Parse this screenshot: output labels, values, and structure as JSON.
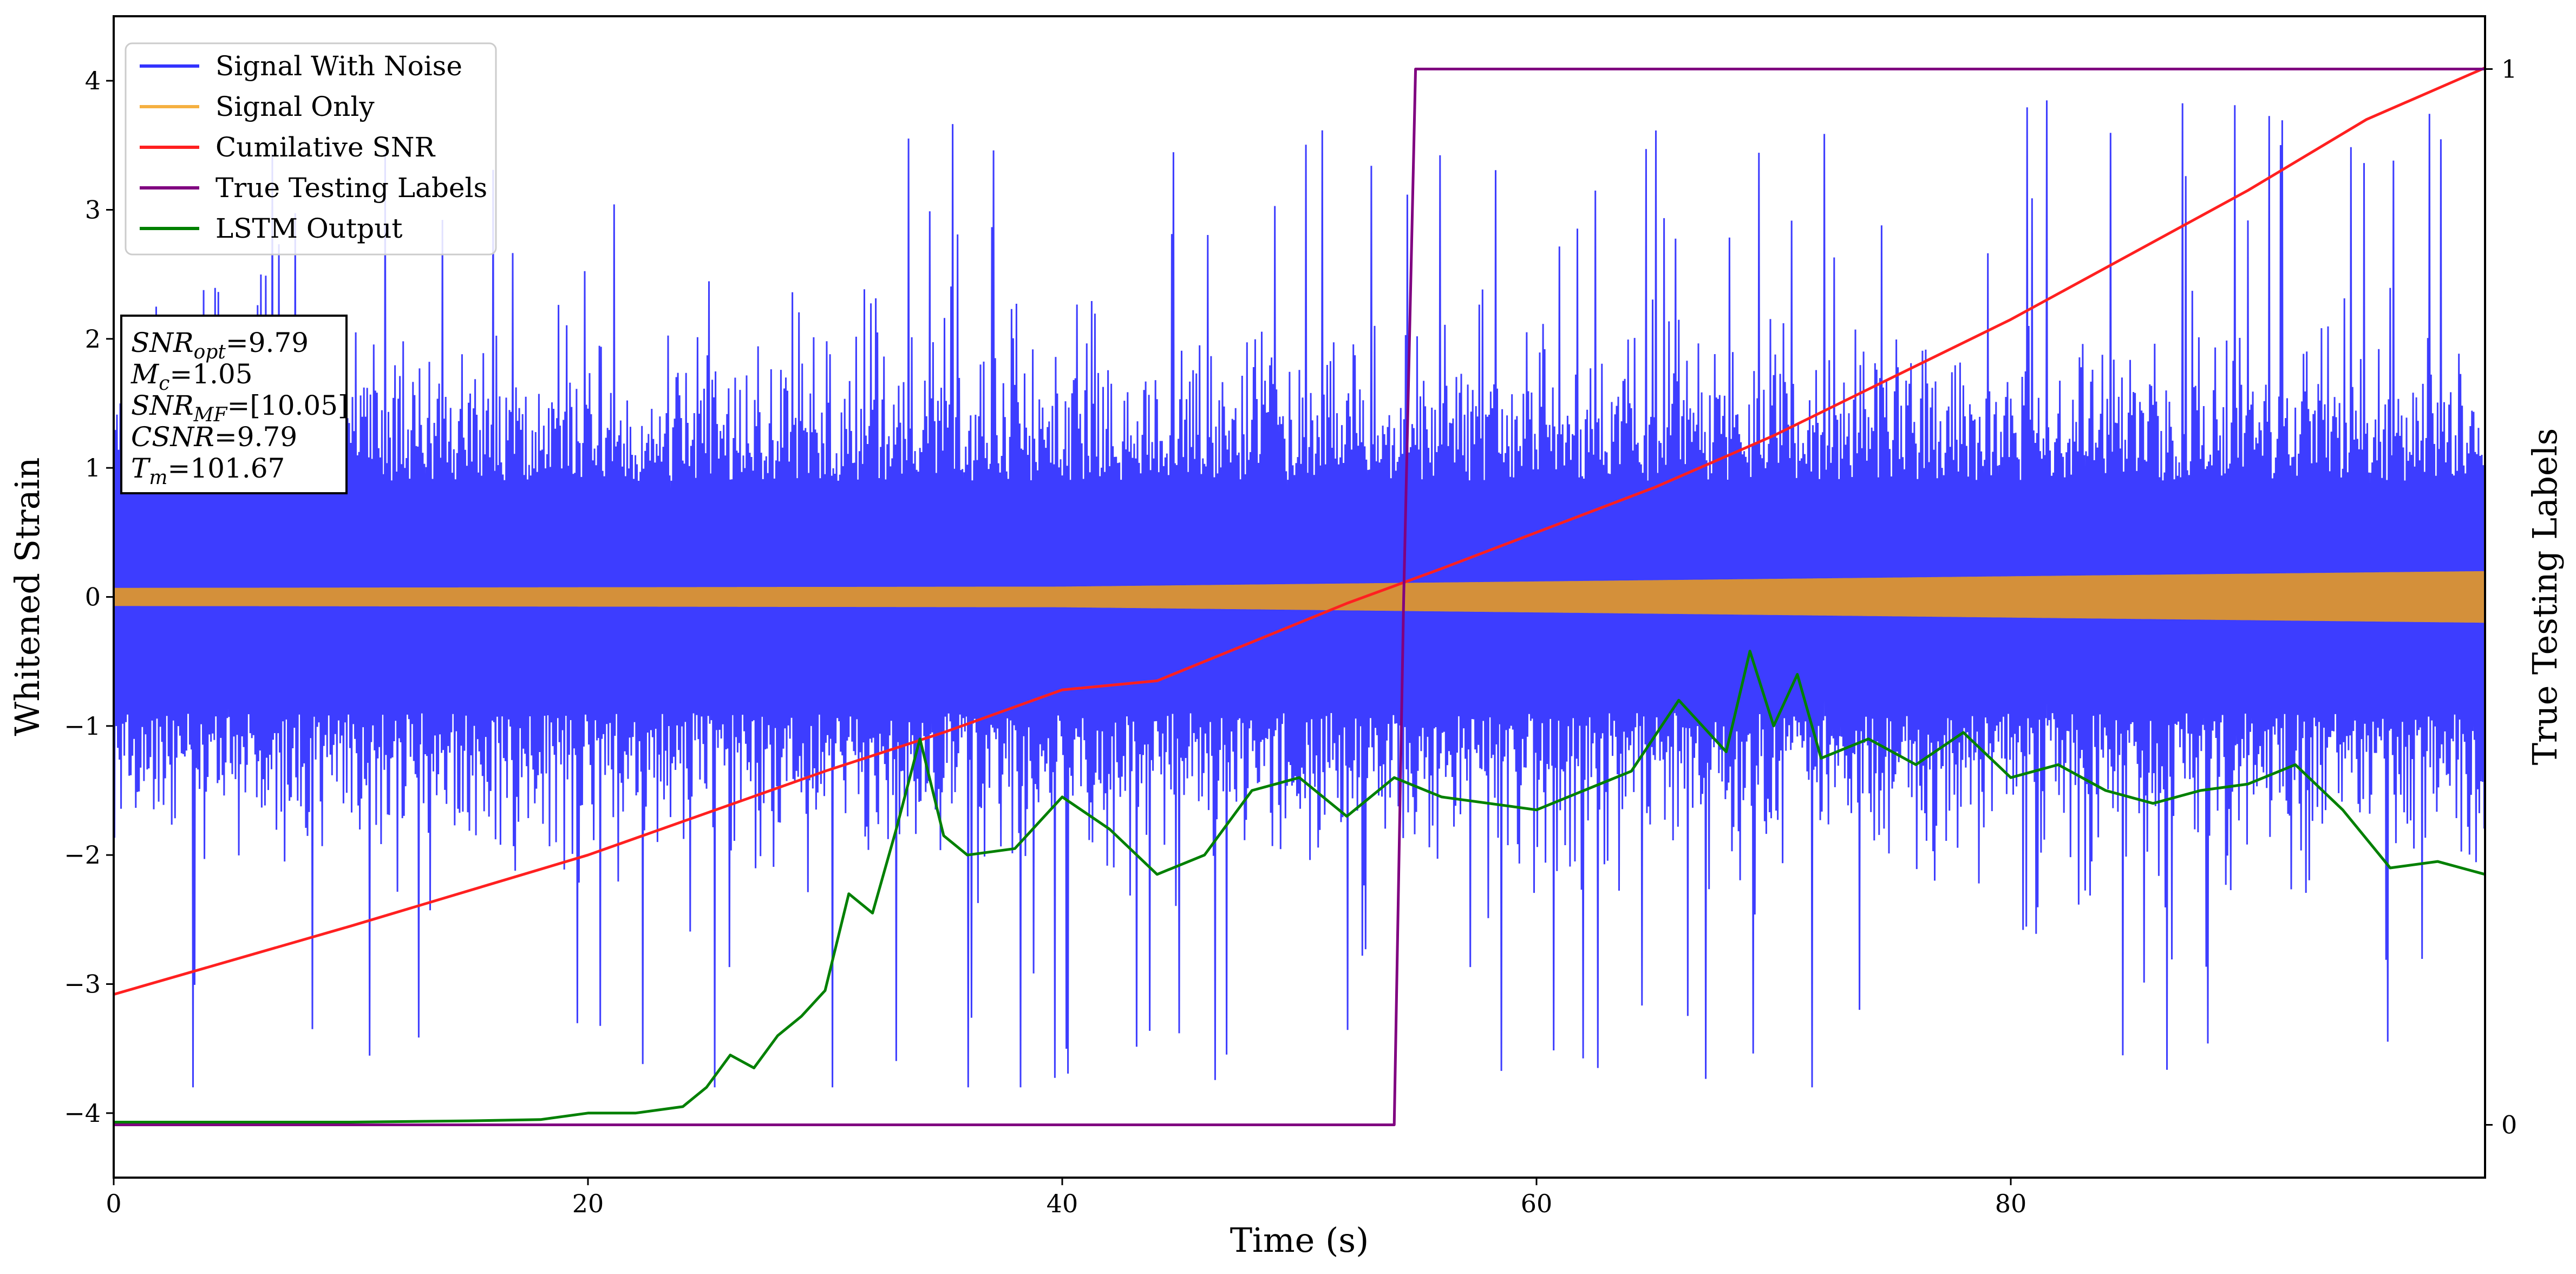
{
  "chart_data": {
    "type": "line",
    "title": "",
    "xlabel": "Time (s)",
    "ylabel": "Whitened Strain",
    "y2label": "True Testing Labels",
    "xlim": [
      0,
      100
    ],
    "ylim": [
      -4.5,
      4.5
    ],
    "y2lim": [
      -0.05,
      1.05
    ],
    "x_ticks": [
      0,
      20,
      40,
      60,
      80
    ],
    "y_ticks": [
      -4,
      -3,
      -2,
      -1,
      0,
      1,
      2,
      3,
      4
    ],
    "y2_ticks": [
      0,
      1
    ],
    "legend": {
      "position": "upper-left",
      "entries": [
        {
          "label": "Signal With Noise",
          "color": "#3333ff"
        },
        {
          "label": "Signal Only",
          "color": "#f5b041"
        },
        {
          "label": "Cumilative SNR",
          "color": "#ff2020"
        },
        {
          "label": "True Testing Labels",
          "color": "#800080"
        },
        {
          "label": "LSTM Output",
          "color": "#008000"
        }
      ]
    },
    "info_box": {
      "position": "left",
      "lines": [
        {
          "base": "SNR",
          "sub": "opt",
          "value": "=9.79"
        },
        {
          "base": "M",
          "sub": "c",
          "value": "=1.05"
        },
        {
          "base": "SNR",
          "sub": "MF",
          "value": "=[10.05]"
        },
        {
          "base": "CSNR",
          "sub": "",
          "value": "=9.79"
        },
        {
          "base": "T",
          "sub": "m",
          "value": "=101.67"
        }
      ]
    },
    "noise_band": {
      "low_typical": -1.5,
      "high_typical": 1.6,
      "peak_max": 4.1,
      "peak_min": -3.8
    },
    "signal_only": {
      "description_amplitude": [
        {
          "x": 0,
          "amp": 0.07
        },
        {
          "x": 40,
          "amp": 0.08
        },
        {
          "x": 60,
          "amp": 0.12
        },
        {
          "x": 80,
          "amp": 0.16
        },
        {
          "x": 100,
          "amp": 0.2
        }
      ]
    },
    "series": [
      {
        "name": "Cumilative SNR",
        "color": "#ff2020",
        "axis": "left",
        "x": [
          0,
          10,
          20,
          30,
          35,
          40,
          44,
          48,
          52,
          56,
          60,
          65,
          70,
          75,
          80,
          85,
          90,
          95,
          100
        ],
        "y": [
          -3.08,
          -2.55,
          -2.0,
          -1.35,
          -1.05,
          -0.72,
          -0.65,
          -0.35,
          -0.05,
          0.22,
          0.5,
          0.85,
          1.25,
          1.7,
          2.15,
          2.65,
          3.15,
          3.7,
          4.1
        ]
      },
      {
        "name": "True Testing Labels",
        "color": "#800080",
        "axis": "right",
        "x": [
          0,
          54.0,
          54.4,
          54.9,
          100
        ],
        "y": [
          0,
          0,
          0.5,
          1,
          1
        ]
      },
      {
        "name": "LSTM Output",
        "color": "#008000",
        "axis": "left",
        "x": [
          0,
          10,
          15,
          18,
          20,
          22,
          24,
          25,
          26,
          27,
          28,
          29,
          30,
          31,
          32,
          33,
          34,
          35,
          36,
          38,
          40,
          42,
          44,
          46,
          48,
          50,
          52,
          54,
          56,
          58,
          60,
          62,
          64,
          66,
          68,
          69,
          70,
          71,
          72,
          74,
          76,
          78,
          80,
          82,
          84,
          86,
          88,
          90,
          92,
          94,
          96,
          98,
          100
        ],
        "y": [
          -4.07,
          -4.07,
          -4.06,
          -4.05,
          -4.0,
          -4.0,
          -3.95,
          -3.8,
          -3.55,
          -3.65,
          -3.4,
          -3.25,
          -3.05,
          -2.3,
          -2.45,
          -1.8,
          -1.1,
          -1.85,
          -2.0,
          -1.95,
          -1.55,
          -1.8,
          -2.15,
          -2.0,
          -1.5,
          -1.4,
          -1.7,
          -1.4,
          -1.55,
          -1.6,
          -1.65,
          -1.5,
          -1.35,
          -0.8,
          -1.2,
          -0.42,
          -1.0,
          -0.6,
          -1.25,
          -1.1,
          -1.3,
          -1.05,
          -1.4,
          -1.3,
          -1.5,
          -1.6,
          -1.5,
          -1.45,
          -1.3,
          -1.65,
          -2.1,
          -2.05,
          -2.15
        ]
      }
    ]
  }
}
